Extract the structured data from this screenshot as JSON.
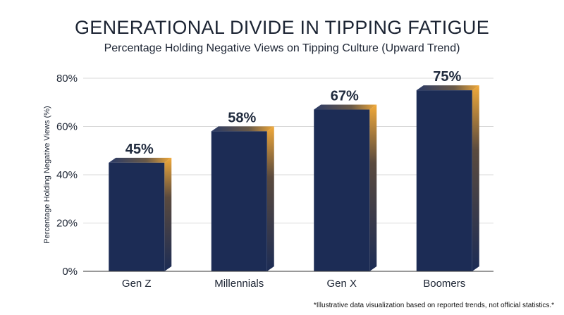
{
  "chart_data": {
    "type": "bar",
    "title": "GENERATIONAL DIVIDE IN TIPPING FATIGUE",
    "subtitle": "Percentage Holding Negative Views on Tipping Culture (Upward Trend)",
    "xlabel": "",
    "ylabel": "Percentage Holding Negative Views (%)",
    "categories": [
      "Gen Z",
      "Millennials",
      "Gen X",
      "Boomers"
    ],
    "values": [
      45,
      58,
      67,
      75
    ],
    "data_labels": [
      "45%",
      "58%",
      "67%",
      "75%"
    ],
    "ylim": [
      0,
      80
    ],
    "yticks": [
      0,
      20,
      40,
      60,
      80
    ],
    "ytick_labels": [
      "0%",
      "20%",
      "40%",
      "60%",
      "80%"
    ],
    "grid": true,
    "colors": {
      "bar": "#1c2c55",
      "bar_side": "#e8a236",
      "grid": "#d9d9d9",
      "axis": "#333333"
    }
  },
  "footnote": "*Illustrative data visualization based on reported trends, not official statistics.*"
}
